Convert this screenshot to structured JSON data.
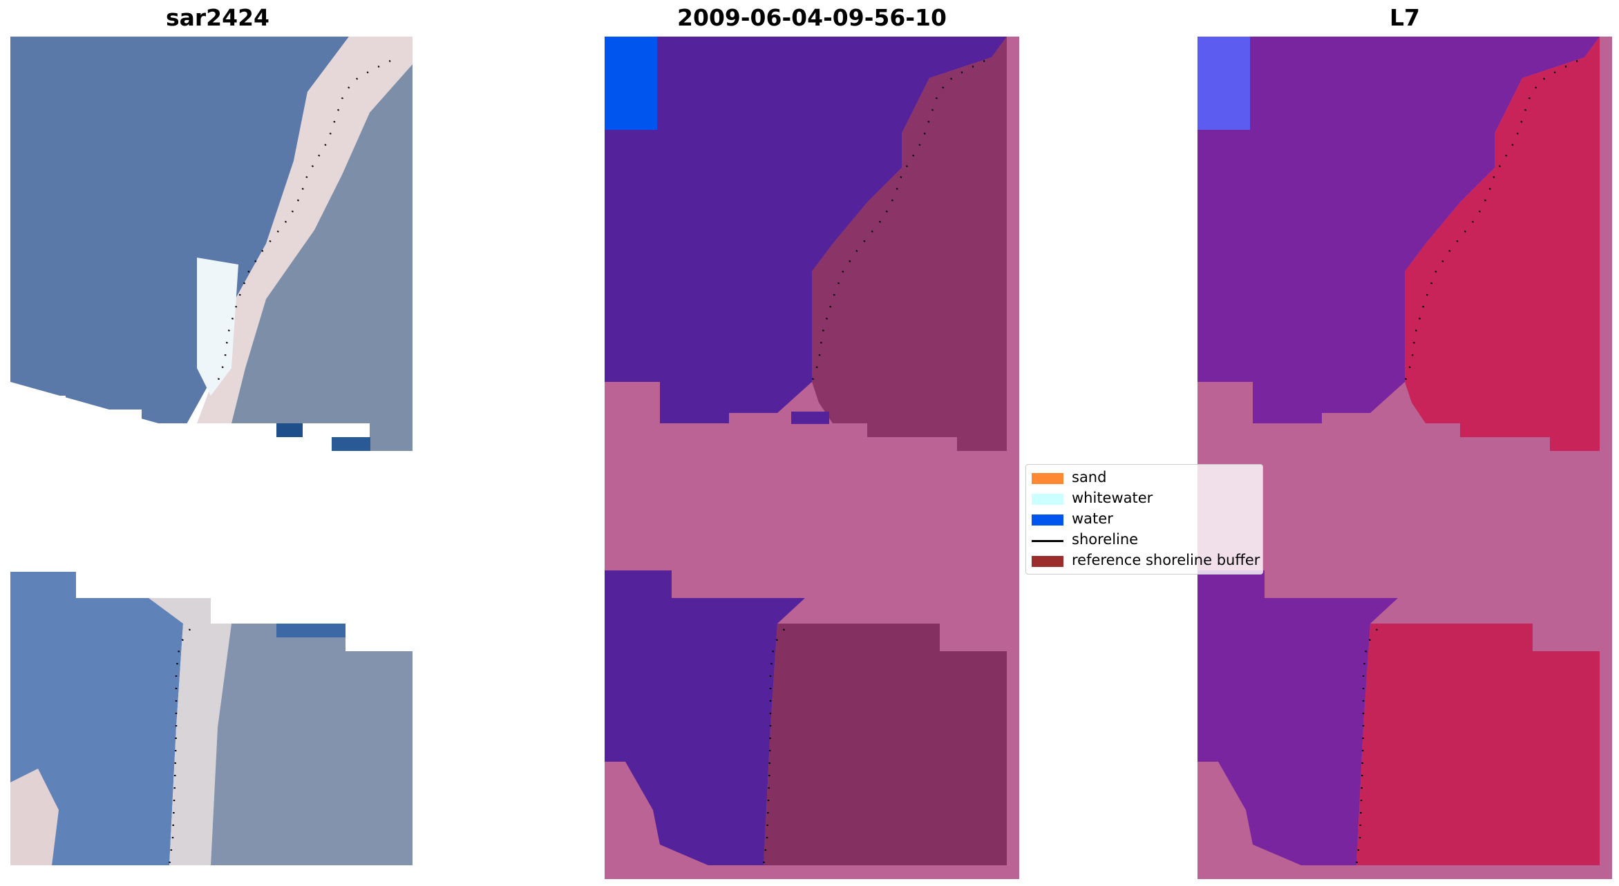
{
  "titles": {
    "left": "sar2424",
    "middle": "2009-06-04-09-56-10",
    "right": "L7"
  },
  "legend": {
    "items": [
      {
        "label": "sand",
        "color": "#ff8833",
        "kind": "patch"
      },
      {
        "label": "whitewater",
        "color": "#ccffff",
        "kind": "patch"
      },
      {
        "label": "water",
        "color": "#0055ee",
        "kind": "patch"
      },
      {
        "label": "shoreline",
        "color": "#000000",
        "kind": "line"
      },
      {
        "label": "reference shoreline buffer",
        "color": "#9b2d2d",
        "kind": "patch"
      }
    ]
  },
  "colors": {
    "rgb_water": "#5a78a8",
    "rgb_land": "#7a8fa8",
    "rgb_beach": "#e8dcd8",
    "class_water": "#54229a",
    "class_water_bright": "#0055ee",
    "class_buffer": "#bb6394",
    "class_land": "#8a3468",
    "mndwi_water": "#7a25a0",
    "mndwi_land": "#c8245a",
    "mndwi_buffer": "#bb6394"
  }
}
